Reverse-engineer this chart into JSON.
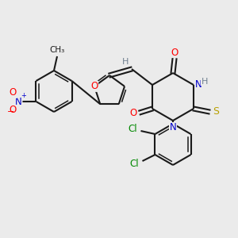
{
  "background_color": "#ebebeb",
  "bond_color": "#1a1a1a",
  "atom_colors": {
    "O": "#ff0000",
    "N": "#0000cc",
    "S": "#b8a000",
    "Cl": "#008800",
    "H": "#708090",
    "C": "#1a1a1a"
  },
  "figsize": [
    3.0,
    3.0
  ],
  "dpi": 100
}
